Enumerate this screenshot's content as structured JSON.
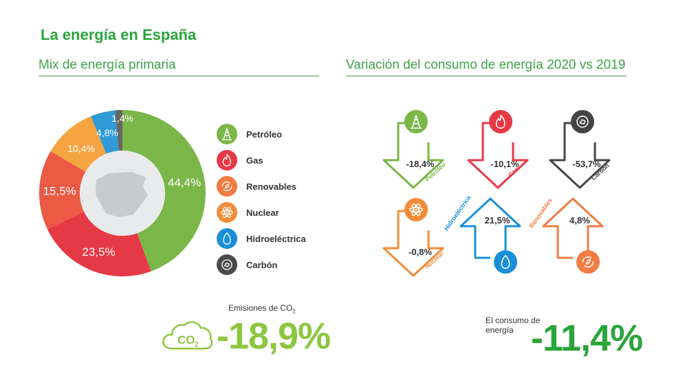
{
  "header": {
    "title": "La energía en España"
  },
  "mix": {
    "title": "Mix de energía primaria",
    "legend": [
      {
        "label": "Petróleo",
        "icon": "oil-derrick-icon",
        "color": "#7ab648"
      },
      {
        "label": "Gas",
        "icon": "flame-icon",
        "color": "#e63946"
      },
      {
        "label": "Renovables",
        "icon": "recycle-leaf-icon",
        "color": "#f07b43"
      },
      {
        "label": "Nuclear",
        "icon": "atom-icon",
        "color": "#f28c38"
      },
      {
        "label": "Hidroeléctrica",
        "icon": "water-drop-icon",
        "color": "#1a8fd6"
      },
      {
        "label": "Carbón",
        "icon": "coal-icon",
        "color": "#4a4a4a"
      }
    ]
  },
  "chart_data": [
    {
      "type": "pie",
      "style": "donut",
      "title": "Mix de energía primaria",
      "categories": [
        "Petróleo",
        "Gas",
        "Renovables",
        "Nuclear",
        "Hidroeléctrica",
        "Carbón"
      ],
      "values": [
        44.4,
        23.5,
        15.5,
        10.4,
        4.8,
        1.4
      ],
      "labels": [
        "44,4%",
        "23,5%",
        "15,5%",
        "10,4%",
        "4,8%",
        "1,4%"
      ],
      "colors": [
        "#7ab648",
        "#e63946",
        "#ea5a45",
        "#f4a541",
        "#2f9ad6",
        "#666666"
      ]
    },
    {
      "type": "bar",
      "style": "arrow-infographic",
      "title": "Variación del consumo de energía 2020 vs 2019",
      "categories": [
        "Petróleo",
        "Gas",
        "Carbón",
        "Nuclear",
        "Hidroeléctrica",
        "Renovables"
      ],
      "values": [
        -18.4,
        -10.1,
        -53.7,
        -0.8,
        21.5,
        4.8
      ],
      "labels": [
        "-18,4%",
        "-10,1%",
        "-53,7%",
        "-0,8%",
        "21,5%",
        "4,8%"
      ],
      "colors": [
        "#7ab648",
        "#e63946",
        "#444444",
        "#f28c38",
        "#1a8fd6",
        "#f07b43"
      ]
    }
  ],
  "variation": {
    "title": "Variación del consumo de energía 2020 vs 2019",
    "items": [
      {
        "name": "Petróleo",
        "value": "-18,4%",
        "direction": "down",
        "icon": "oil-derrick-icon",
        "color": "#7ab648"
      },
      {
        "name": "Gas",
        "value": "-10,1%",
        "direction": "down",
        "icon": "flame-icon",
        "color": "#e63946"
      },
      {
        "name": "Carbón",
        "value": "-53,7%",
        "direction": "down",
        "icon": "coal-icon",
        "color": "#444444"
      },
      {
        "name": "Nuclear",
        "value": "-0,8%",
        "direction": "down",
        "icon": "atom-icon",
        "color": "#f28c38"
      },
      {
        "name": "Hidroeléctrica",
        "value": "21,5%",
        "direction": "up",
        "icon": "water-drop-icon",
        "color": "#1a8fd6"
      },
      {
        "name": "Renovables",
        "value": "4,8%",
        "direction": "up",
        "icon": "recycle-leaf-icon",
        "color": "#f07b43"
      }
    ]
  },
  "emissions": {
    "label_prefix": "Emisiones de CO",
    "label_sub": "2",
    "value": "-18,9%",
    "icon_text": "CO",
    "icon_sub": "2",
    "color": "#8dc63f"
  },
  "consumption": {
    "label": "El consumo de energía",
    "value": "-11,4%",
    "color": "#2aa53c"
  }
}
